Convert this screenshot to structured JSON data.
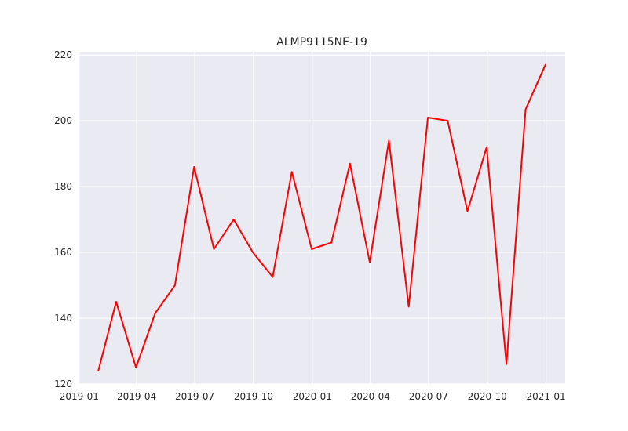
{
  "chart_data": {
    "type": "line",
    "title": "ALMP9115NE-19",
    "xlabel": "",
    "ylabel": "",
    "x": [
      "2019-01-31",
      "2019-02-28",
      "2019-03-31",
      "2019-04-30",
      "2019-05-31",
      "2019-06-30",
      "2019-07-31",
      "2019-08-31",
      "2019-09-30",
      "2019-10-31",
      "2019-11-30",
      "2019-12-31",
      "2020-01-31",
      "2020-02-29",
      "2020-03-31",
      "2020-04-30",
      "2020-05-31",
      "2020-06-30",
      "2020-07-31",
      "2020-08-31",
      "2020-09-30",
      "2020-10-31",
      "2020-11-30",
      "2020-12-31"
    ],
    "series": [
      {
        "color": "#ff0000",
        "values": [
          124,
          145,
          125,
          141.5,
          150,
          186,
          161,
          170,
          160,
          152.5,
          184.5,
          161,
          163,
          187,
          157,
          194,
          143.5,
          201,
          200,
          172.5,
          192,
          126,
          203.5,
          217
        ]
      }
    ],
    "xlim": [
      "2018-12-31",
      "2021-01-31"
    ],
    "ylim": [
      120,
      221
    ],
    "xticks": [
      {
        "date": "2019-01-01",
        "label": "2019-01"
      },
      {
        "date": "2019-04-01",
        "label": "2019-04"
      },
      {
        "date": "2019-07-01",
        "label": "2019-07"
      },
      {
        "date": "2019-10-01",
        "label": "2019-10"
      },
      {
        "date": "2020-01-01",
        "label": "2020-01"
      },
      {
        "date": "2020-04-01",
        "label": "2020-04"
      },
      {
        "date": "2020-07-01",
        "label": "2020-07"
      },
      {
        "date": "2020-10-01",
        "label": "2020-10"
      },
      {
        "date": "2021-01-01",
        "label": "2021-01"
      }
    ],
    "yticks": [
      120,
      140,
      160,
      180,
      200,
      220
    ],
    "grid": true,
    "legend": "none"
  }
}
